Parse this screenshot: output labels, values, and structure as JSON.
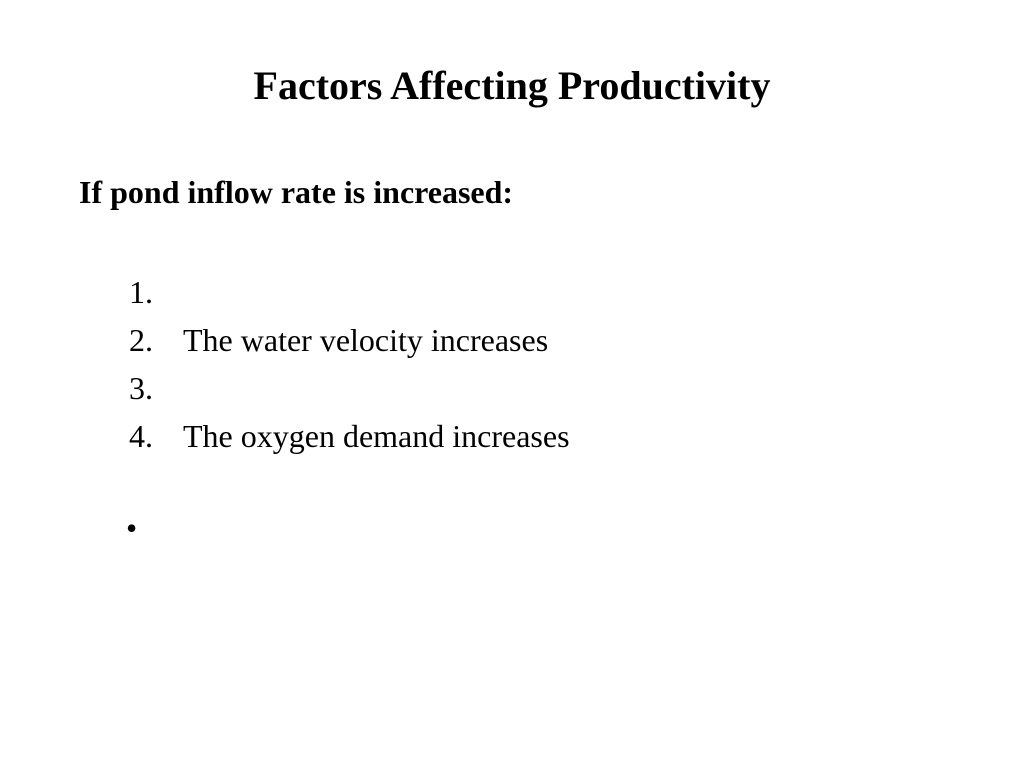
{
  "slide": {
    "title": "Factors Affecting Productivity",
    "subtitle": "If pond inflow rate is increased:",
    "items": [
      {
        "number": "1.",
        "text": ""
      },
      {
        "number": "2.",
        "text": "The water velocity increases"
      },
      {
        "number": "3.",
        "text": ""
      },
      {
        "number": "4.",
        "text": "The oxygen demand increases"
      }
    ],
    "bullet": "•"
  }
}
